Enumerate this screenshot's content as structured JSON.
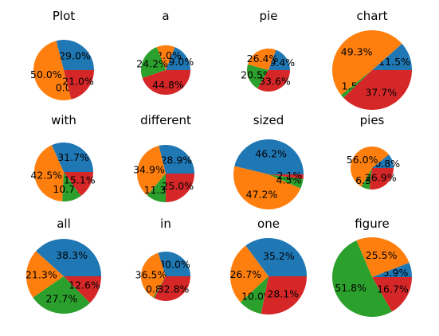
{
  "colors": [
    "#1f77b4",
    "#ff7f0e",
    "#2ca02c",
    "#d62728"
  ],
  "chart_data": [
    {
      "type": "pie",
      "title": "Plot",
      "values": [
        29.0,
        50.0,
        0.0,
        21.0
      ],
      "labels": [
        "29.0%",
        "50.0%",
        "0.0%",
        "21.0%"
      ]
    },
    {
      "type": "pie",
      "title": "a",
      "values": [
        19.0,
        12.0,
        24.2,
        44.8
      ],
      "labels": [
        "19.0%",
        "12.0%",
        "24.2%",
        "44.8%"
      ]
    },
    {
      "type": "pie",
      "title": "pie",
      "values": [
        19.4,
        26.4,
        20.5,
        33.6
      ],
      "labels": [
        "19.4%",
        "26.4%",
        "20.5%",
        "33.6%"
      ]
    },
    {
      "type": "pie",
      "title": "chart",
      "values": [
        11.5,
        49.3,
        1.5,
        37.7
      ],
      "labels": [
        "11.5%",
        "49.3%",
        "1.5%",
        "37.7%"
      ]
    },
    {
      "type": "pie",
      "title": "with",
      "values": [
        31.7,
        42.5,
        10.7,
        15.1
      ],
      "labels": [
        "31.7%",
        "42.5%",
        "10.7%",
        "15.1%"
      ]
    },
    {
      "type": "pie",
      "title": "different",
      "values": [
        28.9,
        34.9,
        11.3,
        25.0
      ],
      "labels": [
        "28.9%",
        "34.9%",
        "11.3%",
        "25.0%"
      ]
    },
    {
      "type": "pie",
      "title": "sized",
      "values": [
        46.2,
        47.2,
        4.5,
        2.1
      ],
      "labels": [
        "46.2%",
        "47.2%",
        "4.5%",
        "2.1%"
      ]
    },
    {
      "type": "pie",
      "title": "pies",
      "values": [
        10.8,
        56.0,
        6.3,
        26.9
      ],
      "labels": [
        "10.8%",
        "56.0%",
        "6.3%",
        "26.9%"
      ]
    },
    {
      "type": "pie",
      "title": "all",
      "values": [
        38.3,
        21.3,
        27.7,
        12.6
      ],
      "labels": [
        "38.3%",
        "21.3%",
        "27.7%",
        "12.6%"
      ]
    },
    {
      "type": "pie",
      "title": "in",
      "values": [
        30.0,
        36.5,
        0.8,
        32.8
      ],
      "labels": [
        "30.0%",
        "36.5%",
        "0.8%",
        "32.8%"
      ]
    },
    {
      "type": "pie",
      "title": "one",
      "values": [
        35.2,
        26.7,
        10.0,
        28.1
      ],
      "labels": [
        "35.2%",
        "26.7%",
        "10.0%",
        "28.1%"
      ]
    },
    {
      "type": "pie",
      "title": "figure",
      "values": [
        5.9,
        25.5,
        51.8,
        16.7
      ],
      "labels": [
        "5.9%",
        "25.5%",
        "51.8%",
        "16.7%"
      ]
    }
  ]
}
